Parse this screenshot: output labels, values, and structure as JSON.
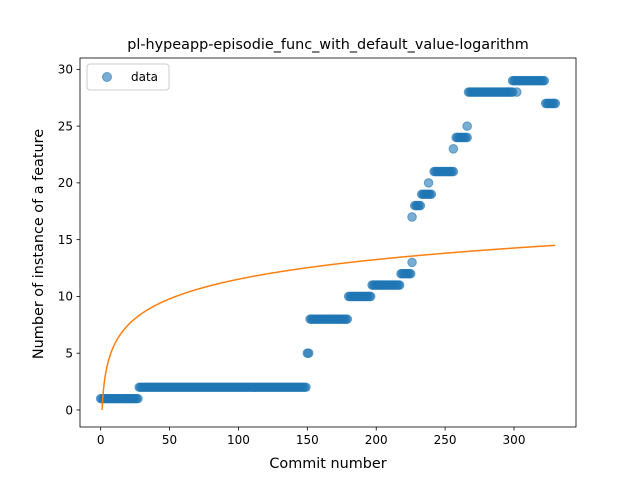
{
  "chart_data": {
    "type": "scatter",
    "title": "pl-hypeapp-episodie_func_with_default_value-logarithm",
    "xlabel": "Commit number",
    "ylabel": "Number of instance of a feature",
    "xlim": [
      -15,
      345
    ],
    "ylim": [
      -1.5,
      31
    ],
    "xticks": [
      0,
      50,
      100,
      150,
      200,
      250,
      300
    ],
    "yticks": [
      0,
      5,
      10,
      15,
      20,
      25,
      30
    ],
    "legend": {
      "placement": "top-left",
      "entries": [
        "data"
      ]
    },
    "grid": false,
    "series": [
      {
        "name": "data",
        "kind": "scatter",
        "color": "#1f77b4",
        "alpha": 0.6,
        "segments": [
          {
            "x_start": 0,
            "x_end": 27,
            "y": 1
          },
          {
            "x_start": 28,
            "x_end": 149,
            "y": 2
          },
          {
            "x_start": 150,
            "x_end": 151,
            "y": 5
          },
          {
            "x_start": 152,
            "x_end": 179,
            "y": 8
          },
          {
            "x_start": 180,
            "x_end": 196,
            "y": 10
          },
          {
            "x_start": 197,
            "x_end": 217,
            "y": 11
          },
          {
            "x_start": 218,
            "x_end": 225,
            "y": 12
          },
          {
            "x_start": 228,
            "x_end": 232,
            "y": 18
          },
          {
            "x_start": 233,
            "x_end": 240,
            "y": 19
          },
          {
            "x_start": 242,
            "x_end": 256,
            "y": 21
          },
          {
            "x_start": 258,
            "x_end": 266,
            "y": 24
          },
          {
            "x_start": 267,
            "x_end": 299,
            "y": 28
          },
          {
            "x_start": 299,
            "x_end": 322,
            "y": 29
          },
          {
            "x_start": 323,
            "x_end": 330,
            "y": 27
          }
        ],
        "extra_points": [
          [
            226,
            13
          ],
          [
            226,
            17
          ],
          [
            238,
            20
          ],
          [
            256,
            23
          ],
          [
            266,
            25
          ],
          [
            302,
            28
          ]
        ]
      },
      {
        "kind": "line",
        "color": "#ff7f0e",
        "function": "log_fit",
        "x_range": [
          1,
          330
        ],
        "points": [
          [
            1,
            0
          ],
          [
            2,
            1.7
          ],
          [
            5,
            4.0
          ],
          [
            10,
            5.8
          ],
          [
            20,
            7.5
          ],
          [
            30,
            8.5
          ],
          [
            50,
            9.8
          ],
          [
            75,
            10.8
          ],
          [
            100,
            11.5
          ],
          [
            150,
            12.5
          ],
          [
            200,
            13.2
          ],
          [
            250,
            13.8
          ],
          [
            300,
            14.3
          ],
          [
            330,
            14.5
          ]
        ]
      }
    ]
  }
}
